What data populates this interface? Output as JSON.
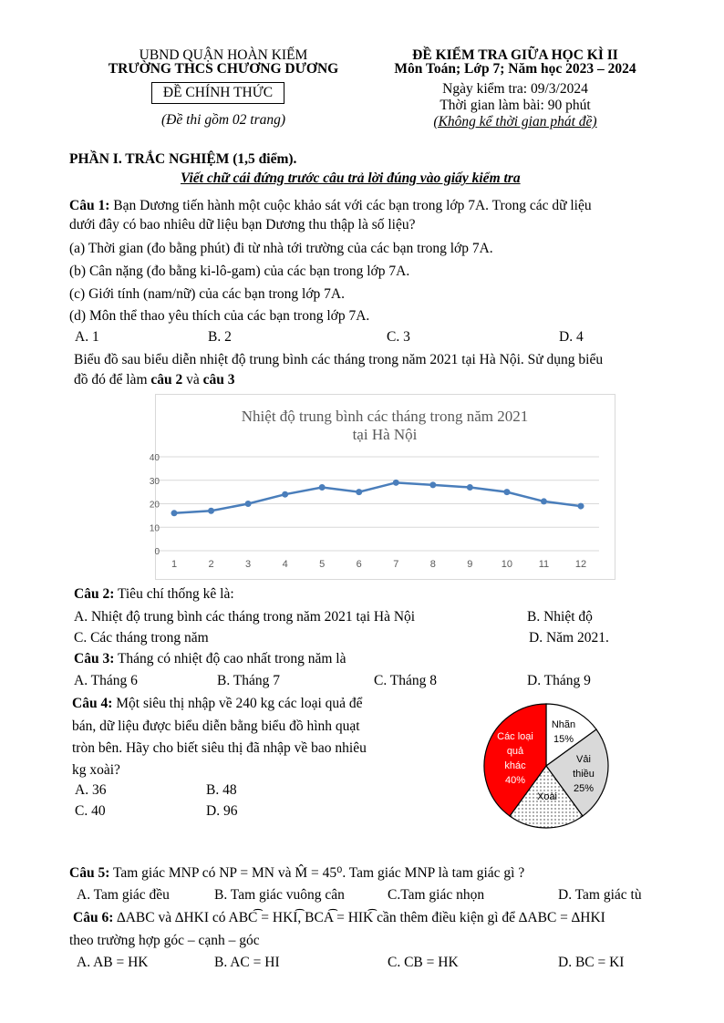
{
  "header": {
    "left1": "UBND QUẬN HOÀN KIẾM",
    "left2": "TRƯỜNG THCS CHƯƠNG DƯƠNG",
    "official": "ĐỀ CHÍNH THỨC",
    "pages": "(Đề thi gồm 02 trang)",
    "right1": "ĐỀ KIỂM TRA GIỮA HỌC KÌ II",
    "right2": "Môn Toán; Lớp 7; Năm học 2023 – 2024",
    "date": "Ngày kiểm tra: 09/3/2024",
    "time": "Thời gian làm bài: 90 phút",
    "time_note": "(Không kể thời gian phát đề)"
  },
  "part1": {
    "title": "PHẦN I. TRẮC NGHIỆM (1,5 điểm).",
    "instruction": "Viết chữ cái đứng trước câu trả lời đúng vào giấy kiểm tra"
  },
  "q1": {
    "label": "Câu 1:",
    "text1": " Bạn Dương tiến hành một cuộc khảo sát với các bạn trong lớp 7A. Trong các dữ liệu",
    "text2": "dưới đây có bao nhiêu dữ liệu bạn Dương thu thập là số liệu?",
    "a": "(a) Thời gian (đo bằng phút) đi từ nhà tới trường của các bạn trong lớp 7A.",
    "b": "(b) Cân nặng (đo bằng ki-lô-gam) của các bạn trong lớp 7A.",
    "c": "(c) Giới tính (nam/nữ) của các bạn trong lớp 7A.",
    "d": "(d) Môn thể thao yêu thích của các bạn trong lớp 7A.",
    "options": [
      "A. 1",
      "B. 2",
      "C. 3",
      "D. 4"
    ]
  },
  "intro": {
    "text1": "Biểu đồ sau biểu diễn nhiệt độ trung bình các tháng trong năm 2021 tại Hà Nội. Sử dụng biểu",
    "text2a": "đồ đó để làm ",
    "bold1": "câu 2",
    "text2b": " và ",
    "bold2": "câu 3"
  },
  "chart_data": [
    {
      "type": "line",
      "title": "Nhiệt độ trung bình các tháng trong năm 2021",
      "subtitle": "tại Hà Nội",
      "categories": [
        "1",
        "2",
        "3",
        "4",
        "5",
        "6",
        "7",
        "8",
        "9",
        "10",
        "11",
        "12"
      ],
      "values": [
        16,
        17,
        20,
        24,
        27,
        25,
        29,
        28,
        27,
        25,
        21,
        19
      ],
      "ylim": [
        0,
        40
      ],
      "yticks": [
        "0",
        "10",
        "20",
        "30",
        "40"
      ],
      "grid": true,
      "color": "#4a7ebb"
    },
    {
      "type": "pie",
      "slices": [
        {
          "label": "Nhãn",
          "value": 15,
          "pct": "15%",
          "color": "#ffffff"
        },
        {
          "label": "Vải thiều",
          "value": 25,
          "pct": "25%",
          "color": "#d9d9d9"
        },
        {
          "label": "Xoài",
          "value": 20,
          "pct": "",
          "color": "dotted"
        },
        {
          "label": "Các loại quả khác",
          "value": 40,
          "pct": "40%",
          "color": "#ff0000"
        }
      ]
    }
  ],
  "q2": {
    "label": "Câu 2:",
    "text": " Tiêu chí thống kê là:",
    "options": [
      "A. Nhiệt độ trung bình các tháng trong năm 2021 tại Hà Nội",
      "B. Nhiệt độ",
      "C. Các tháng trong năm",
      "D. Năm 2021."
    ]
  },
  "q3": {
    "label": "Câu 3:",
    "text": " Tháng có nhiệt độ cao nhất trong năm là",
    "options": [
      "A. Tháng 6",
      "B. Tháng 7",
      "C. Tháng 8",
      "D. Tháng 9"
    ]
  },
  "q4": {
    "label": "Câu 4:",
    "text1": " Một siêu thị nhập về 240 kg các loại quả để",
    "text2": "bán, dữ liệu được biểu diễn bằng biểu đồ hình quạt",
    "text3": "tròn bên. Hãy cho biết siêu thị đã nhập về bao nhiêu",
    "text4": "kg xoài?",
    "options": [
      "A. 36",
      "B. 48",
      "C. 40",
      "D. 96"
    ],
    "pie_labels": {
      "nhan": "Nhãn",
      "nhan_pct": "15%",
      "vai1": "Vải",
      "vai2": "thiều",
      "vai_pct": "25%",
      "xoai": "Xoài",
      "khac1": "Các loại",
      "khac2": "quả",
      "khac3": "khác",
      "khac_pct": "40%"
    }
  },
  "q5": {
    "label": "Câu 5:",
    "text": " Tam giác MNP có NP = MN và M̂ = 45⁰. Tam giác MNP là tam giác gì ?",
    "options": [
      "A.  Tam giác đều",
      "B. Tam giác vuông cân",
      "C.Tam giác nhọn",
      "D. Tam giác tù"
    ]
  },
  "q6": {
    "label": "Câu 6:",
    "text1": " ∆ABC và ∆HKI có ABC͡ = HKI͡, BCA͡ = HIK͡ cần thêm điều kiện gì để  ∆ABC = ∆HKI",
    "text2": "theo trường hợp góc – cạnh – góc",
    "options": [
      "A. AB = HK",
      "B. AC = HI",
      "C. CB = HK",
      "D. BC = KI"
    ]
  }
}
